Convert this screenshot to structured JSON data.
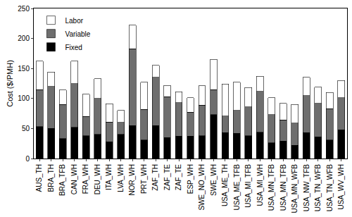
{
  "chart_data": {
    "type": "bar",
    "stacked": true,
    "y_label": "Cost ($/PMH)",
    "categories": [
      "AUS_TH",
      "BRA_TH",
      "BRA_TFB",
      "CAN_WH",
      "FRA_WH",
      "DEU_WH",
      "ITA_WH",
      "LVA_WH",
      "NOR_WH",
      "PRT_WH",
      "ZAF_TH",
      "ZAF_TE",
      "ZAF_TE",
      "ESP_WH",
      "SWE_NO_WH",
      "SWE_WH",
      "USA_ME_TH",
      "USA_ME_TFB",
      "USA_MI_TFB",
      "USA_MI_WH",
      "USA_MN_TFB",
      "USA_MN_TFB",
      "USA_MN_WFB",
      "USA_NW_TFB",
      "USA_TN_WFB",
      "USA_TN_WFB",
      "USA_WV_WH"
    ],
    "series": [
      {
        "name": "Fixed",
        "color": "#000000",
        "values": [
          53,
          50,
          33,
          52,
          38,
          40,
          28,
          40,
          55,
          31,
          55,
          35,
          37,
          37,
          38,
          73,
          43,
          42,
          38,
          44,
          26,
          29,
          22,
          43,
          36,
          31,
          48
        ]
      },
      {
        "name": "Variable",
        "color": "#6e6e6e",
        "values": [
          62,
          70,
          57,
          73,
          32,
          60,
          33,
          20,
          128,
          51,
          80,
          68,
          56,
          40,
          51,
          42,
          28,
          38,
          48,
          68,
          47,
          35,
          37,
          62,
          56,
          52,
          53
        ]
      },
      {
        "name": "Labor",
        "color": "#ffffff",
        "values": [
          47,
          24,
          24,
          37,
          37,
          33,
          30,
          20,
          39,
          45,
          20,
          19,
          18,
          24,
          32,
          50,
          53,
          47,
          32,
          25,
          28,
          28,
          31,
          30,
          27,
          27,
          29
        ]
      }
    ],
    "ylim": [
      0,
      250
    ],
    "yticks": [
      0,
      50,
      100,
      150,
      200,
      250
    ],
    "grid": false,
    "legend": "top-left"
  }
}
